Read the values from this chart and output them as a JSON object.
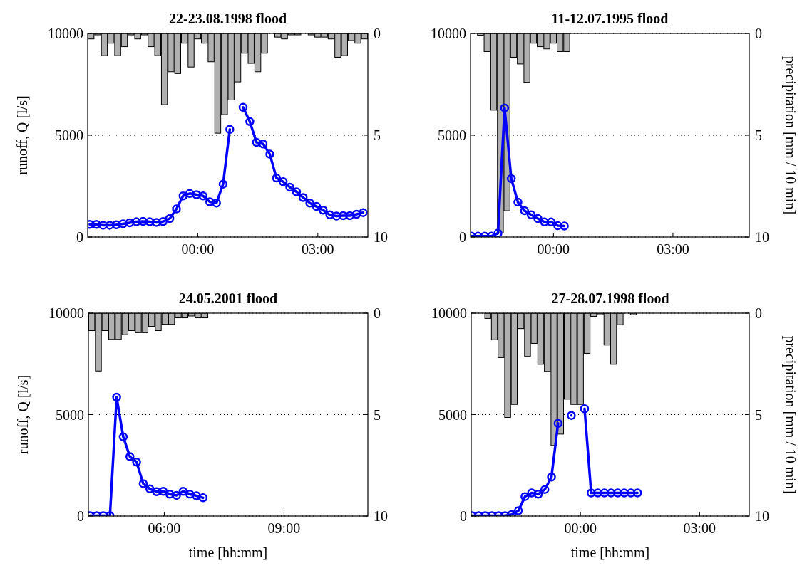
{
  "chart_data": [
    {
      "type": "line",
      "title": "22-23.08.1998 flood",
      "ylabel": "runoff, Q [l/s]",
      "xlim": [
        -2.75,
        4.25
      ],
      "xticks": [
        {
          "value": 0,
          "label": "00:00"
        },
        {
          "value": 3,
          "label": "03:00"
        }
      ],
      "ylim": [
        0,
        10000
      ],
      "yticks": [
        0,
        5000,
        10000
      ],
      "y2lim": [
        10,
        0
      ],
      "y2ticks": [
        0,
        5,
        10
      ],
      "grid": "y",
      "series": [
        {
          "type": "bar",
          "axis": "y2",
          "color": "#b0b0b0",
          "x": [
            -2.667,
            -2.5,
            -2.333,
            -2.167,
            -2,
            -1.833,
            -1.667,
            -1.5,
            -1.333,
            -1.167,
            -1,
            -0.833,
            -0.667,
            -0.5,
            -0.333,
            -0.167,
            0,
            0.167,
            0.333,
            0.5,
            0.667,
            0.833,
            1,
            1.167,
            1.333,
            1.5,
            1.667,
            1.833,
            2,
            2.167,
            2.333,
            2.5,
            2.667,
            2.833,
            3,
            3.167,
            3.333,
            3.5,
            3.667,
            3.833,
            4,
            4.167
          ],
          "values": [
            0.27,
            0.07,
            1.09,
            0.48,
            1.09,
            0.65,
            0.07,
            0.27,
            0.07,
            0.65,
            1.09,
            3.5,
            1.88,
            1.97,
            0.48,
            1.65,
            0.27,
            0.48,
            1.39,
            4.9,
            3.99,
            3.27,
            2.38,
            0.97,
            1.47,
            1.88,
            0.97,
            null,
            0.18,
            0.27,
            0.07,
            0.07,
            null,
            0.07,
            0.18,
            0.18,
            0.27,
            1.17,
            1.09,
            0.35,
            0.48,
            0.27
          ]
        },
        {
          "color": "#0000ff",
          "marker": "circle",
          "x": [
            -2.7,
            -2.533,
            -2.367,
            -2.2,
            -2.033,
            -1.867,
            -1.7,
            -1.533,
            -1.367,
            -1.2,
            -1.033,
            -0.867,
            -0.7,
            -0.533,
            -0.367,
            -0.2,
            -0.033,
            0.133,
            0.3,
            0.467,
            0.633,
            0.8,
            0.967,
            1.133,
            1.3,
            1.467,
            1.633,
            1.8,
            1.967,
            2.133,
            2.3,
            2.467,
            2.633,
            2.8,
            2.967,
            3.133,
            3.3,
            3.467,
            3.633,
            3.8,
            3.967,
            4.133
          ],
          "values": [
            620,
            620,
            580,
            580,
            600,
            650,
            700,
            750,
            770,
            750,
            720,
            760,
            910,
            1380,
            2020,
            2140,
            2080,
            2020,
            1730,
            1670,
            2600,
            5290,
            null,
            6370,
            5670,
            4650,
            4570,
            4070,
            2900,
            2720,
            2450,
            2220,
            1940,
            1670,
            1500,
            1320,
            1090,
            1030,
            1050,
            1050,
            1120,
            1200
          ]
        }
      ]
    },
    {
      "type": "line",
      "title": "11-12.07.1995 flood",
      "y2label": "precipitation [mm / 10 min]",
      "xlim": [
        -2.083,
        4.917
      ],
      "xticks": [
        {
          "value": 0,
          "label": "00:00"
        },
        {
          "value": 3,
          "label": "03:00"
        }
      ],
      "ylim": [
        0,
        10000
      ],
      "yticks": [
        0,
        5000,
        10000
      ],
      "y2lim": [
        10,
        0
      ],
      "y2ticks": [
        0,
        5,
        10
      ],
      "grid": "y",
      "series": [
        {
          "type": "bar",
          "axis": "y2",
          "color": "#b0b0b0",
          "x": [
            -1.833,
            -1.667,
            -1.5,
            -1.333,
            -1.167,
            -1,
            -0.833,
            -0.667,
            -0.5,
            -0.333,
            -0.167,
            0,
            0.167,
            0.333
          ],
          "values": [
            0.09,
            0.89,
            3.77,
            9.8,
            8.71,
            1.17,
            1.5,
            2.4,
            0.48,
            0.65,
            0.76,
            0.48,
            0.89,
            0.89
          ]
        },
        {
          "color": "#0000ff",
          "marker": "circle",
          "x": [
            -2.06,
            -1.893,
            -1.727,
            -1.56,
            -1.393,
            -1.227,
            -1.06,
            -0.893,
            -0.727,
            -0.56,
            -0.393,
            -0.227,
            -0.06,
            0.107,
            0.273
          ],
          "values": [
            40,
            40,
            40,
            40,
            190,
            6340,
            2870,
            1710,
            1290,
            1090,
            910,
            740,
            740,
            560,
            540
          ]
        }
      ]
    },
    {
      "type": "line",
      "title": "24.05.2001 flood",
      "ylabel": "runoff, Q [l/s]",
      "xlabel": "time [hh:mm]",
      "xlim": [
        4.1,
        11.1
      ],
      "xticks": [
        {
          "value": 6,
          "label": "06:00"
        },
        {
          "value": 9,
          "label": "09:00"
        }
      ],
      "ylim": [
        0,
        10000
      ],
      "yticks": [
        0,
        5000,
        10000
      ],
      "y2lim": [
        10,
        0
      ],
      "y2ticks": [
        0,
        5,
        10
      ],
      "grid": "y",
      "series": [
        {
          "type": "bar",
          "axis": "y2",
          "color": "#b0b0b0",
          "x": [
            4.183,
            4.35,
            4.517,
            4.683,
            4.85,
            5.017,
            5.183,
            5.35,
            5.517,
            5.683,
            5.85,
            6.017,
            6.183,
            6.35,
            6.517,
            6.683,
            6.85,
            7.017
          ],
          "values": [
            0.86,
            2.85,
            0.86,
            1.29,
            1.29,
            1.06,
            0.86,
            0.96,
            0.96,
            0.65,
            0.86,
            0.55,
            0.55,
            0.23,
            0.23,
            0.14,
            0.23,
            0.23
          ]
        },
        {
          "color": "#0000ff",
          "marker": "circle",
          "x": [
            4.14,
            4.307,
            4.473,
            4.64,
            4.807,
            4.973,
            5.14,
            5.307,
            5.473,
            5.64,
            5.807,
            5.973,
            6.14,
            6.307,
            6.473,
            6.64,
            6.807,
            6.973
          ],
          "values": [
            20,
            20,
            20,
            20,
            5860,
            3900,
            2930,
            2660,
            1600,
            1340,
            1200,
            1220,
            1080,
            1020,
            1220,
            1080,
            1000,
            900
          ]
        }
      ]
    },
    {
      "type": "line",
      "title": "27-28.07.1998 flood",
      "y2label": "precipitation [mm / 10 min]",
      "xlabel": "time [hh:mm]",
      "xlim": [
        -2.75,
        4.25
      ],
      "xticks": [
        {
          "value": 0,
          "label": "00:00"
        },
        {
          "value": 3,
          "label": "03:00"
        }
      ],
      "ylim": [
        0,
        10000
      ],
      "yticks": [
        0,
        5000,
        10000
      ],
      "y2lim": [
        10,
        0
      ],
      "y2ticks": [
        0,
        5,
        10
      ],
      "grid": "y",
      "series": [
        {
          "type": "bar",
          "axis": "y2",
          "color": "#b0b0b0",
          "x": [
            -2.333,
            -2.167,
            -2,
            -1.833,
            -1.667,
            -1.5,
            -1.333,
            -1.167,
            -1,
            -0.833,
            -0.667,
            -0.5,
            -0.333,
            -0.167,
            0,
            0.167,
            0.333,
            0.5,
            0.667,
            0.833,
            1,
            1.333
          ],
          "values": [
            0.26,
            1.31,
            2.19,
            5.14,
            4.5,
            0.76,
            2.13,
            1.49,
            2.52,
            2.87,
            6.52,
            5.96,
            4.24,
            4.5,
            4.5,
            1.98,
            0.16,
            0.08,
            1.57,
            2.52,
            0.57,
            0.08
          ]
        },
        {
          "color": "#0000ff",
          "marker": "circle",
          "x": [
            -2.73,
            -2.563,
            -2.397,
            -2.23,
            -2.063,
            -1.897,
            -1.73,
            -1.563,
            -1.397,
            -1.23,
            -1.063,
            -0.897,
            -0.73,
            -0.563,
            -0.397,
            -0.23,
            -0.063,
            0.103,
            0.27,
            0.437,
            0.603,
            0.77,
            0.937,
            1.103,
            1.27,
            1.437
          ],
          "values": [
            20,
            20,
            20,
            20,
            20,
            20,
            80,
            260,
            960,
            1140,
            1080,
            1310,
            1920,
            4570,
            null,
            4960,
            null,
            5290,
            1140,
            1140,
            1140,
            1140,
            1140,
            1140,
            1140,
            1140
          ]
        }
      ]
    }
  ]
}
